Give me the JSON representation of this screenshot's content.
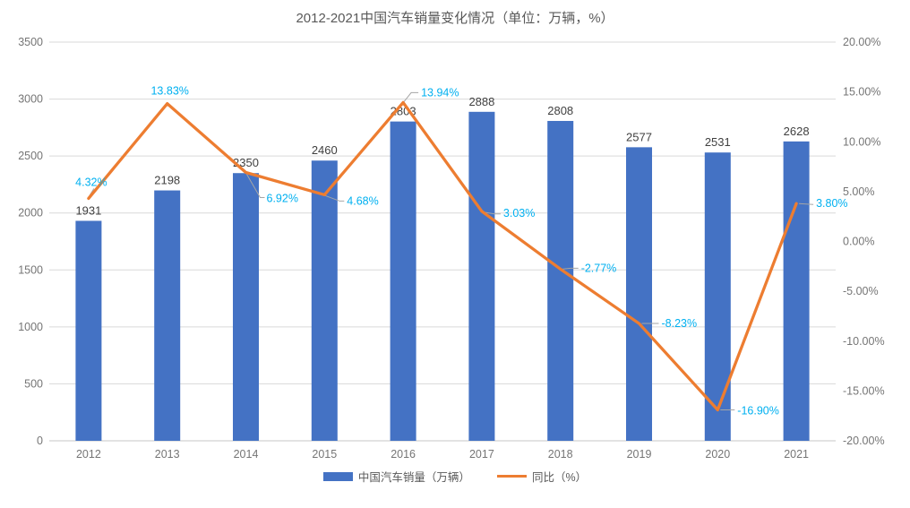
{
  "chart_data": {
    "type": "combo-bar-line",
    "title": "2012-2021中国汽车销量变化情况（单位：万辆，%）",
    "categories": [
      "2012",
      "2013",
      "2014",
      "2015",
      "2016",
      "2017",
      "2018",
      "2019",
      "2020",
      "2021"
    ],
    "series": [
      {
        "name": "中国汽车销量（万辆）",
        "type": "bar",
        "axis": "left",
        "color": "#4472C4",
        "label_color": "#404040",
        "values": [
          1931,
          2198,
          2350,
          2460,
          2803,
          2888,
          2808,
          2577,
          2531,
          2628
        ],
        "labels": [
          "1931",
          "2198",
          "2350",
          "2460",
          "2803",
          "2888",
          "2808",
          "2577",
          "2531",
          "2628"
        ]
      },
      {
        "name": "同比（%）",
        "type": "line",
        "axis": "right",
        "color": "#ED7D31",
        "label_color": "#00B0F0",
        "values": [
          4.32,
          13.83,
          6.92,
          4.68,
          13.94,
          3.03,
          -2.77,
          -8.23,
          -16.9,
          3.8
        ],
        "labels": [
          "4.32%",
          "13.83%",
          "6.92%",
          "4.68%",
          "13.94%",
          "3.03%",
          "-2.77%",
          "-8.23%",
          "-16.90%",
          "3.80%"
        ]
      }
    ],
    "left_axis": {
      "min": 0,
      "max": 3500,
      "ticks": [
        "3500",
        "3000",
        "2500",
        "2000",
        "1500",
        "1000",
        "500",
        "0"
      ]
    },
    "right_axis": {
      "min": -20,
      "max": 20,
      "ticks": [
        "20.00%",
        "15.00%",
        "10.00%",
        "5.00%",
        "0.00%",
        "-5.00%",
        "-10.00%",
        "-15.00%",
        "-20.00%"
      ]
    },
    "grid": true,
    "legend_position": "bottom",
    "colors": {
      "gridline": "#d9d9d9",
      "axis_line": "#c7c7c7",
      "tick_text": "#757575",
      "leader_line": "#a6a6a6",
      "title_text": "#595959"
    }
  }
}
